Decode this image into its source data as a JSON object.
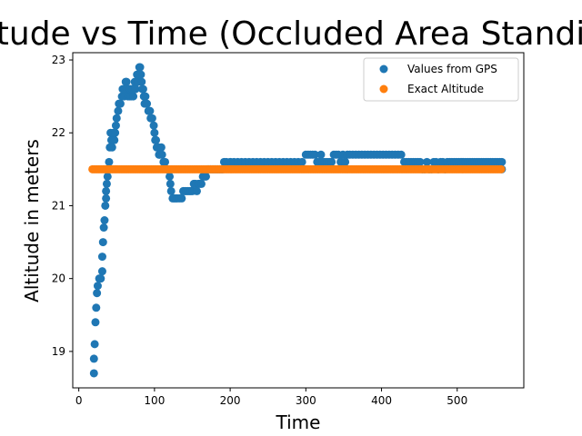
{
  "chart_data": {
    "type": "scatter",
    "title": "Altitude vs Time (Occluded Area Standing)",
    "xlabel": "Time",
    "ylabel": "Altitude in meters",
    "xlim": [
      -8,
      588
    ],
    "ylim": [
      18.5,
      23.1
    ],
    "xticks": [
      0,
      100,
      200,
      300,
      400,
      500
    ],
    "yticks": [
      19,
      20,
      21,
      22,
      23
    ],
    "grid": false,
    "legend_position": "top-right",
    "series": [
      {
        "name": "Values from GPS",
        "color": "#1f77b4",
        "points": [
          [
            20,
            18.7
          ],
          [
            20,
            18.9
          ],
          [
            21,
            19.1
          ],
          [
            22,
            19.4
          ],
          [
            23,
            19.6
          ],
          [
            24,
            19.8
          ],
          [
            25,
            19.9
          ],
          [
            27,
            20.0
          ],
          [
            29,
            20.0
          ],
          [
            31,
            20.1
          ],
          [
            31,
            20.3
          ],
          [
            32,
            20.5
          ],
          [
            33,
            20.7
          ],
          [
            34,
            20.8
          ],
          [
            35,
            21.0
          ],
          [
            36,
            21.1
          ],
          [
            36,
            21.2
          ],
          [
            37,
            21.3
          ],
          [
            38,
            21.4
          ],
          [
            39,
            21.5
          ],
          [
            40,
            21.6
          ],
          [
            41,
            21.8
          ],
          [
            42,
            22.0
          ],
          [
            43,
            21.9
          ],
          [
            44,
            21.8
          ],
          [
            45,
            21.9
          ],
          [
            46,
            22.0
          ],
          [
            47,
            21.9
          ],
          [
            48,
            22.0
          ],
          [
            49,
            22.1
          ],
          [
            50,
            22.2
          ],
          [
            52,
            22.3
          ],
          [
            53,
            22.4
          ],
          [
            55,
            22.4
          ],
          [
            57,
            22.5
          ],
          [
            58,
            22.6
          ],
          [
            60,
            22.5
          ],
          [
            61,
            22.6
          ],
          [
            62,
            22.7
          ],
          [
            63,
            22.7
          ],
          [
            64,
            22.6
          ],
          [
            65,
            22.5
          ],
          [
            66,
            22.6
          ],
          [
            67,
            22.5
          ],
          [
            68,
            22.6
          ],
          [
            69,
            22.5
          ],
          [
            70,
            22.6
          ],
          [
            71,
            22.6
          ],
          [
            72,
            22.5
          ],
          [
            73,
            22.6
          ],
          [
            74,
            22.7
          ],
          [
            75,
            22.6
          ],
          [
            76,
            22.7
          ],
          [
            77,
            22.8
          ],
          [
            78,
            22.7
          ],
          [
            79,
            22.8
          ],
          [
            80,
            22.9
          ],
          [
            81,
            22.9
          ],
          [
            82,
            22.8
          ],
          [
            83,
            22.7
          ],
          [
            84,
            22.6
          ],
          [
            85,
            22.6
          ],
          [
            86,
            22.5
          ],
          [
            87,
            22.4
          ],
          [
            88,
            22.5
          ],
          [
            89,
            22.4
          ],
          [
            90,
            22.4
          ],
          [
            92,
            22.3
          ],
          [
            94,
            22.3
          ],
          [
            95,
            22.2
          ],
          [
            97,
            22.2
          ],
          [
            99,
            22.1
          ],
          [
            100,
            22.0
          ],
          [
            101,
            21.9
          ],
          [
            102,
            21.9
          ],
          [
            103,
            21.8
          ],
          [
            105,
            21.8
          ],
          [
            106,
            21.7
          ],
          [
            107,
            21.7
          ],
          [
            109,
            21.8
          ],
          [
            110,
            21.7
          ],
          [
            112,
            21.6
          ],
          [
            114,
            21.6
          ],
          [
            116,
            21.5
          ],
          [
            118,
            21.5
          ],
          [
            120,
            21.4
          ],
          [
            121,
            21.3
          ],
          [
            122,
            21.2
          ],
          [
            124,
            21.1
          ],
          [
            126,
            21.1
          ],
          [
            128,
            21.1
          ],
          [
            130,
            21.1
          ],
          [
            133,
            21.1
          ],
          [
            136,
            21.1
          ],
          [
            138,
            21.2
          ],
          [
            140,
            21.2
          ],
          [
            142,
            21.2
          ],
          [
            144,
            21.2
          ],
          [
            146,
            21.2
          ],
          [
            148,
            21.2
          ],
          [
            150,
            21.2
          ],
          [
            152,
            21.3
          ],
          [
            154,
            21.3
          ],
          [
            156,
            21.2
          ],
          [
            158,
            21.3
          ],
          [
            160,
            21.3
          ],
          [
            162,
            21.3
          ],
          [
            164,
            21.4
          ],
          [
            166,
            21.4
          ],
          [
            168,
            21.4
          ],
          [
            170,
            21.5
          ],
          [
            172,
            21.5
          ],
          [
            174,
            21.5
          ],
          [
            176,
            21.5
          ],
          [
            178,
            21.5
          ],
          [
            180,
            21.5
          ],
          [
            182,
            21.5
          ],
          [
            184,
            21.5
          ],
          [
            186,
            21.5
          ],
          [
            188,
            21.5
          ],
          [
            190,
            21.5
          ],
          [
            192,
            21.6
          ],
          [
            195,
            21.6
          ],
          [
            200,
            21.6
          ],
          [
            205,
            21.6
          ],
          [
            210,
            21.6
          ],
          [
            215,
            21.6
          ],
          [
            220,
            21.6
          ],
          [
            225,
            21.6
          ],
          [
            230,
            21.6
          ],
          [
            235,
            21.6
          ],
          [
            240,
            21.6
          ],
          [
            245,
            21.6
          ],
          [
            250,
            21.6
          ],
          [
            255,
            21.6
          ],
          [
            260,
            21.6
          ],
          [
            265,
            21.6
          ],
          [
            270,
            21.6
          ],
          [
            275,
            21.6
          ],
          [
            280,
            21.6
          ],
          [
            285,
            21.6
          ],
          [
            290,
            21.6
          ],
          [
            295,
            21.6
          ],
          [
            300,
            21.7
          ],
          [
            303,
            21.7
          ],
          [
            306,
            21.7
          ],
          [
            309,
            21.7
          ],
          [
            312,
            21.7
          ],
          [
            315,
            21.6
          ],
          [
            318,
            21.6
          ],
          [
            320,
            21.7
          ],
          [
            322,
            21.6
          ],
          [
            325,
            21.6
          ],
          [
            328,
            21.6
          ],
          [
            331,
            21.6
          ],
          [
            334,
            21.6
          ],
          [
            337,
            21.7
          ],
          [
            340,
            21.7
          ],
          [
            343,
            21.7
          ],
          [
            346,
            21.6
          ],
          [
            349,
            21.7
          ],
          [
            352,
            21.6
          ],
          [
            355,
            21.7
          ],
          [
            358,
            21.7
          ],
          [
            362,
            21.7
          ],
          [
            366,
            21.7
          ],
          [
            370,
            21.7
          ],
          [
            374,
            21.7
          ],
          [
            378,
            21.7
          ],
          [
            382,
            21.7
          ],
          [
            386,
            21.7
          ],
          [
            390,
            21.7
          ],
          [
            394,
            21.7
          ],
          [
            398,
            21.7
          ],
          [
            402,
            21.7
          ],
          [
            406,
            21.7
          ],
          [
            410,
            21.7
          ],
          [
            414,
            21.7
          ],
          [
            418,
            21.7
          ],
          [
            422,
            21.7
          ],
          [
            426,
            21.7
          ],
          [
            430,
            21.6
          ],
          [
            433,
            21.6
          ],
          [
            436,
            21.6
          ],
          [
            439,
            21.6
          ],
          [
            442,
            21.6
          ],
          [
            445,
            21.6
          ],
          [
            448,
            21.6
          ],
          [
            451,
            21.6
          ],
          [
            454,
            21.5
          ],
          [
            457,
            21.5
          ],
          [
            460,
            21.6
          ],
          [
            463,
            21.5
          ],
          [
            466,
            21.5
          ],
          [
            469,
            21.6
          ],
          [
            472,
            21.6
          ],
          [
            475,
            21.5
          ],
          [
            478,
            21.6
          ],
          [
            481,
            21.6
          ],
          [
            484,
            21.5
          ],
          [
            487,
            21.6
          ],
          [
            490,
            21.6
          ],
          [
            493,
            21.6
          ],
          [
            496,
            21.6
          ],
          [
            499,
            21.6
          ],
          [
            502,
            21.6
          ],
          [
            505,
            21.6
          ],
          [
            508,
            21.6
          ],
          [
            511,
            21.6
          ],
          [
            514,
            21.6
          ],
          [
            517,
            21.6
          ],
          [
            520,
            21.6
          ],
          [
            523,
            21.6
          ],
          [
            526,
            21.6
          ],
          [
            529,
            21.6
          ],
          [
            532,
            21.6
          ],
          [
            535,
            21.6
          ],
          [
            538,
            21.6
          ],
          [
            541,
            21.6
          ],
          [
            544,
            21.6
          ],
          [
            547,
            21.6
          ],
          [
            550,
            21.6
          ],
          [
            553,
            21.6
          ],
          [
            556,
            21.6
          ],
          [
            559,
            21.6
          ],
          [
            559,
            21.5
          ]
        ]
      },
      {
        "name": "Exact Altitude",
        "color": "#ff7f0e",
        "y_value": 21.5,
        "x_range": [
          18,
          559
        ]
      }
    ]
  }
}
